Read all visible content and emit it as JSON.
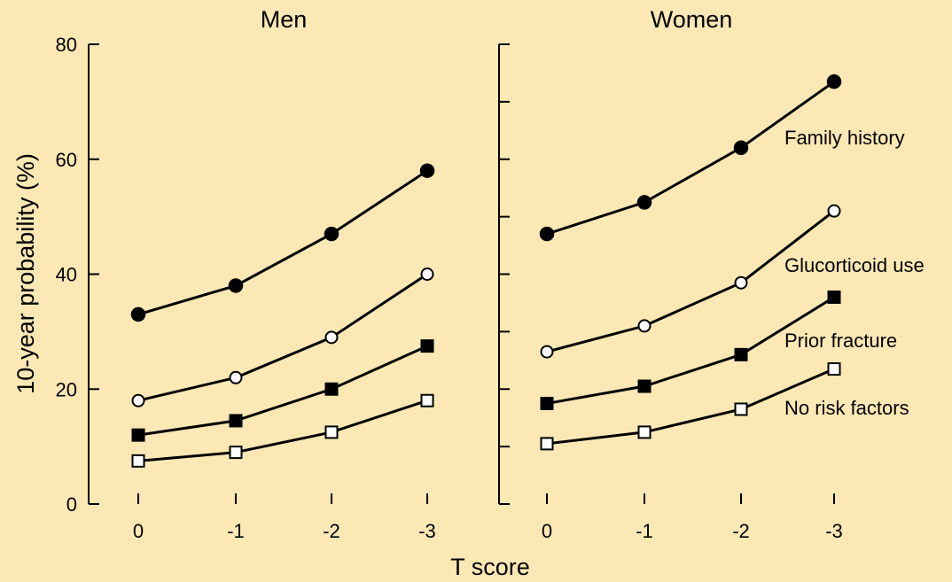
{
  "chart_data": {
    "type": "line",
    "xlabel": "T score",
    "ylabel": "10-year probability (%)",
    "x_ticks": [
      "0",
      "-1",
      "-2",
      "-3"
    ],
    "ylim": [
      0,
      80
    ],
    "y_ticks": [
      0,
      20,
      40,
      60,
      80
    ],
    "grid": false,
    "panels": [
      {
        "title": "Men",
        "series": [
          {
            "marker": "filled-circle",
            "values": [
              33,
              38,
              47,
              58
            ]
          },
          {
            "marker": "open-circle",
            "values": [
              18,
              22,
              29,
              40
            ]
          },
          {
            "marker": "filled-square",
            "values": [
              12,
              14.5,
              20,
              27.5
            ]
          },
          {
            "marker": "open-square",
            "values": [
              7.5,
              9,
              12.5,
              18
            ]
          }
        ]
      },
      {
        "title": "Women",
        "series": [
          {
            "name": "Family history",
            "marker": "filled-circle",
            "values": [
              47,
              52.5,
              62,
              73.5
            ]
          },
          {
            "name": "Glucorticoid use",
            "marker": "open-circle",
            "values": [
              26.5,
              31,
              38.5,
              51
            ]
          },
          {
            "name": "Prior fracture",
            "marker": "filled-square",
            "values": [
              17.5,
              20.5,
              26,
              36
            ]
          },
          {
            "name": "No risk factors",
            "marker": "open-square",
            "values": [
              10.5,
              12.5,
              16.5,
              23.5
            ]
          }
        ]
      }
    ]
  },
  "colors": {
    "background": "#fbe8b4",
    "ink": "#000000",
    "marker_open_fill": "#ffffff"
  }
}
